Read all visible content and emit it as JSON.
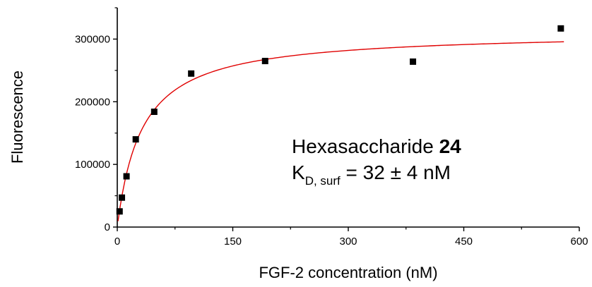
{
  "chart_data": {
    "type": "scatter",
    "xlabel": "FGF-2 concentration (nM)",
    "ylabel": "Fluorescence",
    "xlim": [
      0,
      600
    ],
    "ylim": [
      0,
      350000
    ],
    "xticks": [
      0,
      150,
      300,
      450,
      600
    ],
    "yticks": [
      0,
      100000,
      200000,
      300000
    ],
    "x_tick_labels": [
      "0",
      "150",
      "300",
      "450",
      "600"
    ],
    "y_tick_labels": [
      "0",
      "100000",
      "200000",
      "300000"
    ],
    "grid": false,
    "series": [
      {
        "type": "scatter",
        "marker": "square",
        "color": "#000000",
        "points": [
          {
            "x": 3,
            "y": 25000
          },
          {
            "x": 6,
            "y": 47000
          },
          {
            "x": 12,
            "y": 81000
          },
          {
            "x": 24,
            "y": 140000
          },
          {
            "x": 48,
            "y": 184000
          },
          {
            "x": 96,
            "y": 245000
          },
          {
            "x": 192,
            "y": 265000
          },
          {
            "x": 384,
            "y": 264000
          },
          {
            "x": 576,
            "y": 317000
          }
        ]
      },
      {
        "type": "line",
        "color": "#e00000",
        "model": "one-site binding: y = Bmax*x/(KD + x)",
        "Bmax": 312000,
        "KD": 32,
        "x_range": [
          1,
          580
        ]
      }
    ],
    "annotation": {
      "line1_text": "Hexasaccharide ",
      "line1_bold": "24",
      "line2_main": "K",
      "line2_sub": "D, surf",
      "line2_rest": " = 32 ± 4 nM"
    }
  }
}
